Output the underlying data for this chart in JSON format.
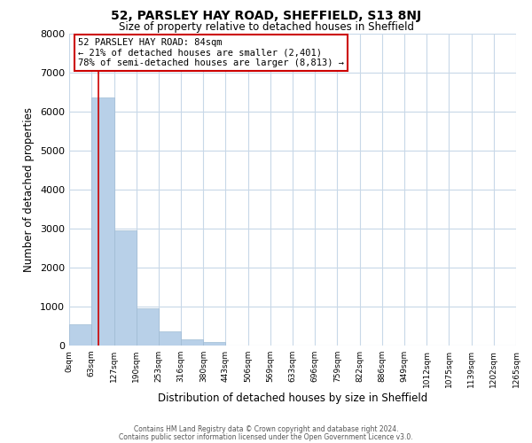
{
  "title": "52, PARSLEY HAY ROAD, SHEFFIELD, S13 8NJ",
  "subtitle": "Size of property relative to detached houses in Sheffield",
  "xlabel": "Distribution of detached houses by size in Sheffield",
  "ylabel": "Number of detached properties",
  "bar_color": "#b8d0e8",
  "bar_edge_color": "#a0bcd4",
  "annotation_line_color": "#cc0000",
  "annotation_box_edge_color": "#cc0000",
  "annotation_line1": "52 PARSLEY HAY ROAD: 84sqm",
  "annotation_line2": "← 21% of detached houses are smaller (2,401)",
  "annotation_line3": "78% of semi-detached houses are larger (8,813) →",
  "property_size_sqm": 84,
  "bin_edges": [
    0,
    63,
    127,
    190,
    253,
    316,
    380,
    443,
    506,
    569,
    633,
    696,
    759,
    822,
    886,
    949,
    1012,
    1075,
    1139,
    1202,
    1265
  ],
  "bin_counts": [
    550,
    6350,
    2950,
    950,
    370,
    160,
    80,
    0,
    0,
    0,
    0,
    0,
    0,
    0,
    0,
    0,
    0,
    0,
    0,
    0
  ],
  "ylim": [
    0,
    8000
  ],
  "yticks": [
    0,
    1000,
    2000,
    3000,
    4000,
    5000,
    6000,
    7000,
    8000
  ],
  "tick_labels": [
    "0sqm",
    "63sqm",
    "127sqm",
    "190sqm",
    "253sqm",
    "316sqm",
    "380sqm",
    "443sqm",
    "506sqm",
    "569sqm",
    "633sqm",
    "696sqm",
    "759sqm",
    "822sqm",
    "886sqm",
    "949sqm",
    "1012sqm",
    "1075sqm",
    "1139sqm",
    "1202sqm",
    "1265sqm"
  ],
  "footer_line1": "Contains HM Land Registry data © Crown copyright and database right 2024.",
  "footer_line2": "Contains public sector information licensed under the Open Government Licence v3.0.",
  "background_color": "#ffffff",
  "grid_color": "#c8d8e8"
}
